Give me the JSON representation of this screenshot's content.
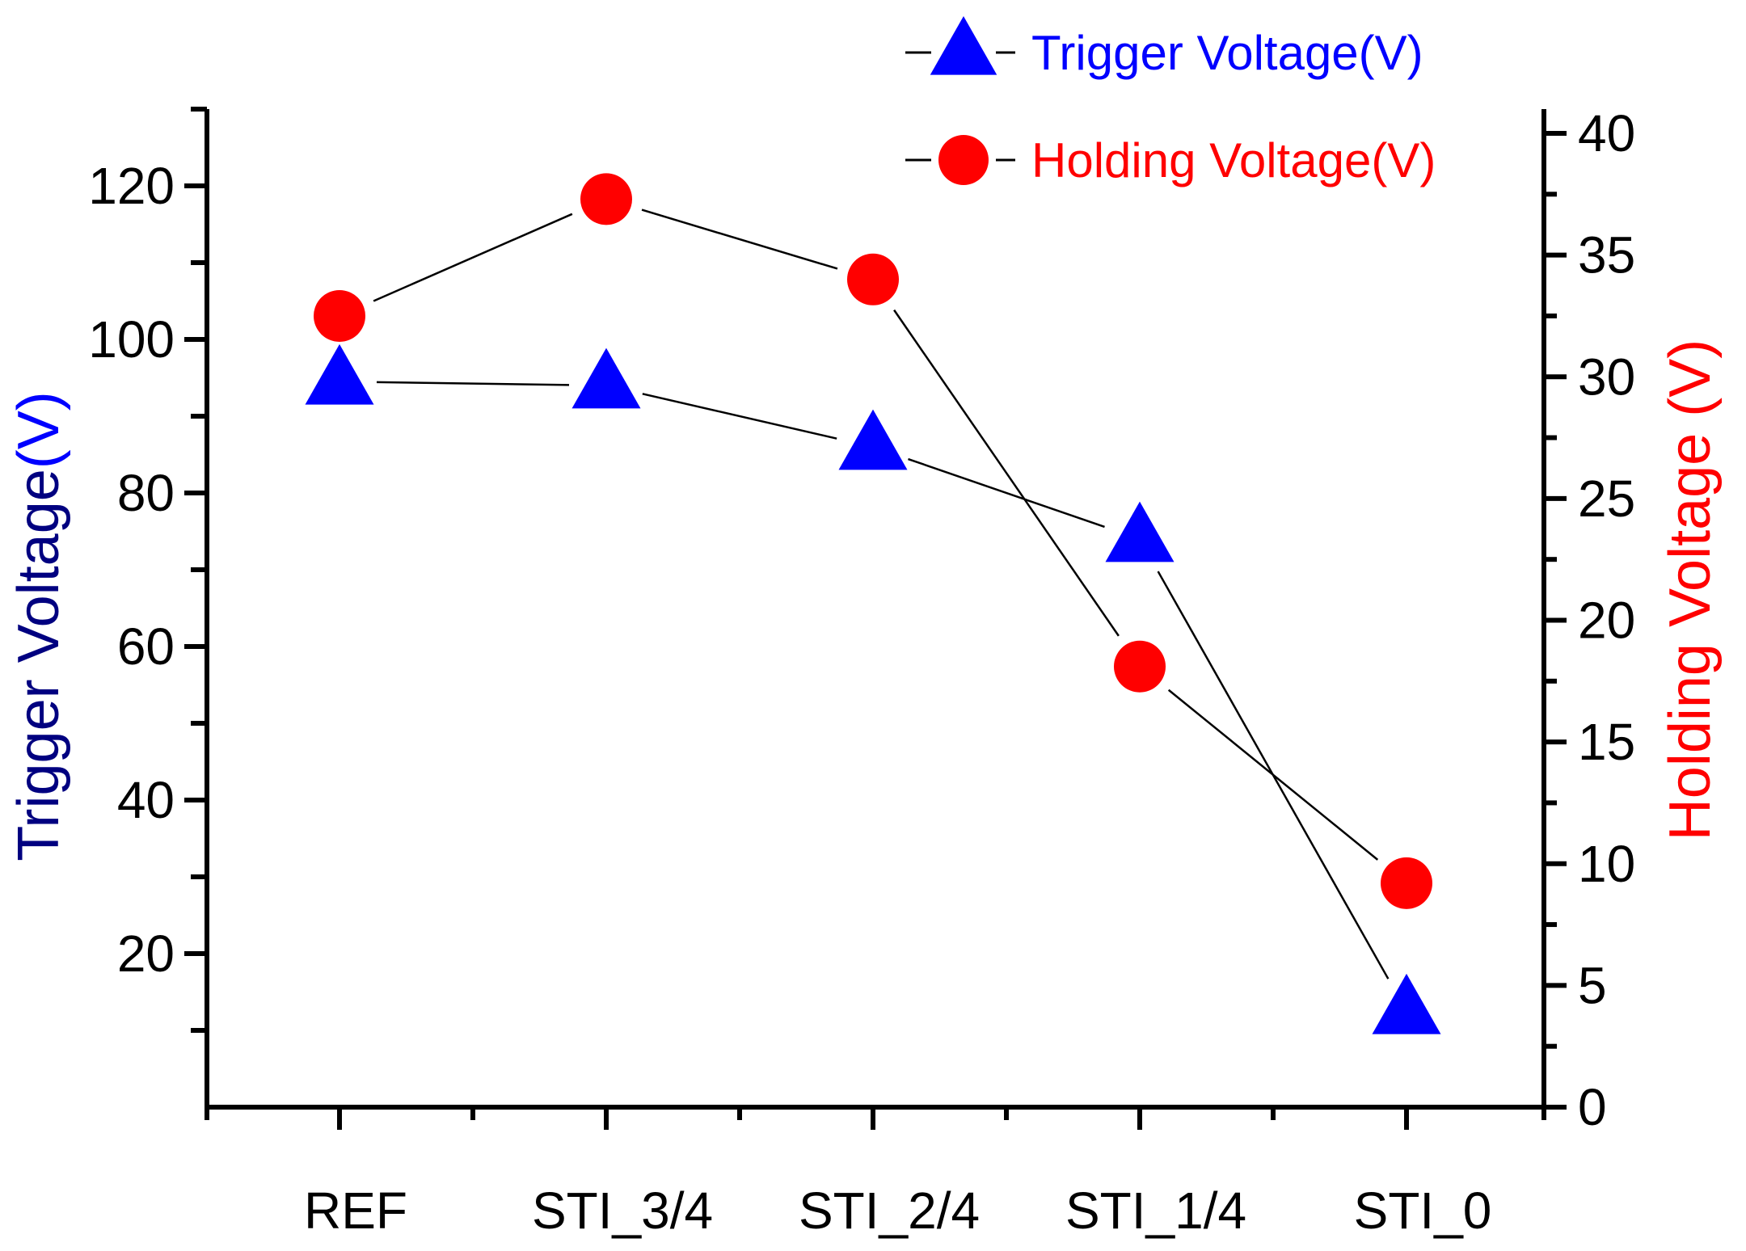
{
  "chart_data": {
    "type": "line",
    "categories": [
      "REF",
      "STI_3/4",
      "STI_2/4",
      "STI_1/4",
      "STI_0"
    ],
    "series": [
      {
        "name": "Trigger Voltage(V)",
        "axis": "left",
        "marker": "triangle",
        "color": "#0000ff",
        "values": [
          94.5,
          94,
          86,
          74,
          12.5
        ]
      },
      {
        "name": "Holding Voltage(V)",
        "axis": "right",
        "marker": "circle",
        "color": "#ff0000",
        "values": [
          32.5,
          37.3,
          34,
          18.1,
          9.2
        ]
      }
    ],
    "left_axis": {
      "label_parts": [
        "Trigger Voltage",
        "(V)"
      ],
      "label_colors": [
        "#000080",
        "#0000ff"
      ],
      "ylim": [
        0,
        130
      ],
      "major_ticks": [
        20,
        40,
        60,
        80,
        100,
        120
      ],
      "minor_ticks": [
        10,
        30,
        50,
        70,
        90,
        110,
        130
      ]
    },
    "right_axis": {
      "label": "Holding Voltage (V)",
      "color": "#ff0000",
      "ylim": [
        0,
        40
      ],
      "major_ticks": [
        0,
        5,
        10,
        15,
        20,
        25,
        30,
        35,
        40
      ]
    },
    "legend_position": "top-right",
    "grid": false
  }
}
